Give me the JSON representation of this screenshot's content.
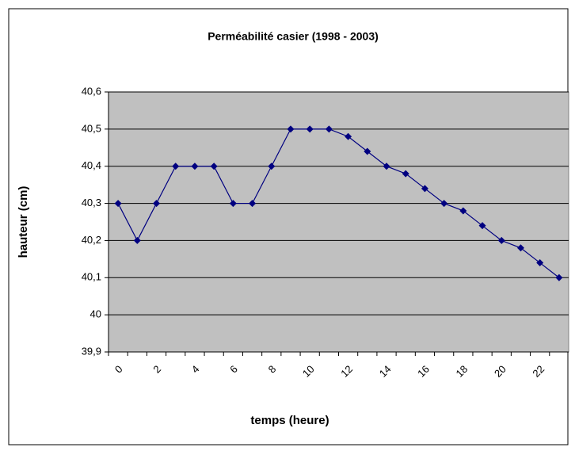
{
  "chart_data": {
    "type": "line",
    "title": "Perméabilité casier (1998 - 2003)",
    "x_label": "temps (heure)",
    "y_label": "hauteur (cm)",
    "categories": [
      "0",
      null,
      "2",
      null,
      "4",
      null,
      "6",
      null,
      "8",
      null,
      "10",
      null,
      "12",
      null,
      "14",
      null,
      "16",
      null,
      "18",
      null,
      "20",
      null,
      "22",
      null
    ],
    "series": [
      {
        "name": "hauteur",
        "color": "#000080",
        "values": [
          40.3,
          40.2,
          40.3,
          40.4,
          40.4,
          40.4,
          40.3,
          40.3,
          40.4,
          40.5,
          40.5,
          40.5,
          40.48,
          40.44,
          40.4,
          40.38,
          40.34,
          40.3,
          40.28,
          40.24,
          40.2,
          40.18,
          40.14,
          40.1
        ]
      }
    ],
    "ylim": [
      39.9,
      40.6
    ],
    "yticks": [
      {
        "value": 39.9,
        "label": "39,9"
      },
      40,
      {
        "value": 40.1,
        "label": "40,1"
      },
      {
        "value": 40.2,
        "label": "40,2"
      },
      {
        "value": 40.3,
        "label": "40,3"
      },
      {
        "value": 40.4,
        "label": "40,4"
      },
      {
        "value": 40.5,
        "label": "40,5"
      },
      {
        "value": 40.6,
        "label": "40,6"
      }
    ],
    "grid": true,
    "plot_background": "#c0c0c0"
  }
}
